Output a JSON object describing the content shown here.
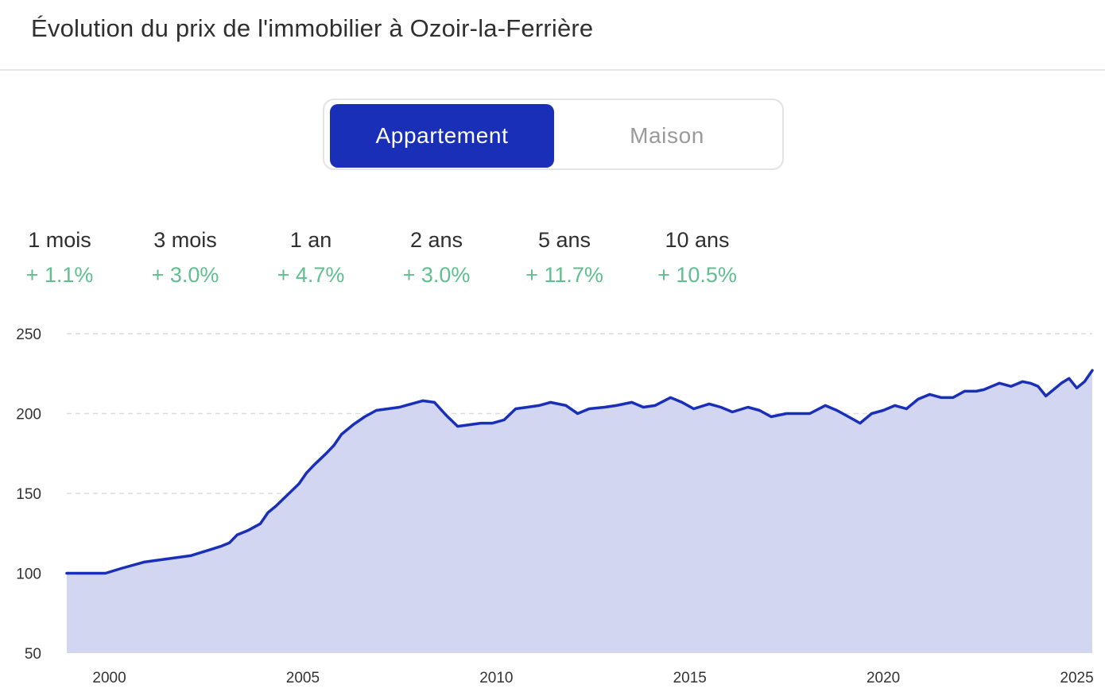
{
  "header": {
    "title": "Évolution du prix de l'immobilier à Ozoir-la-Ferrière"
  },
  "toggle": {
    "options": [
      {
        "label": "Appartement",
        "active": true
      },
      {
        "label": "Maison",
        "active": false
      }
    ]
  },
  "stats": [
    {
      "label": "1 mois",
      "value": "+ 1.1%"
    },
    {
      "label": "3 mois",
      "value": "+ 3.0%"
    },
    {
      "label": "1 an",
      "value": "+ 4.7%"
    },
    {
      "label": "2 ans",
      "value": "+ 3.0%"
    },
    {
      "label": "5 ans",
      "value": "+ 11.7%"
    },
    {
      "label": "10 ans",
      "value": "+ 10.5%"
    }
  ],
  "colors": {
    "line": "#1a2fb8",
    "fill": "#d2d6f0",
    "accent": "#1a2fb8",
    "positive": "#5fbf8f",
    "grid": "#dcdcdc"
  },
  "chart_data": {
    "type": "area",
    "title": "",
    "xlabel": "",
    "ylabel": "",
    "ylim": [
      50,
      250
    ],
    "yticks": [
      250,
      200,
      150,
      100,
      50
    ],
    "xlim": [
      1998.9,
      2025.4
    ],
    "xticks": [
      2000,
      2005,
      2010,
      2015,
      2020,
      2025
    ],
    "grid": true,
    "legend": "none",
    "x": [
      1998.9,
      1999.5,
      1999.9,
      2000.3,
      2000.9,
      2001.5,
      2002.1,
      2002.5,
      2002.9,
      2003.1,
      2003.3,
      2003.6,
      2003.9,
      2004.1,
      2004.3,
      2004.6,
      2004.9,
      2005.1,
      2005.3,
      2005.6,
      2005.8,
      2006.0,
      2006.3,
      2006.6,
      2006.9,
      2007.2,
      2007.5,
      2007.8,
      2008.1,
      2008.4,
      2008.7,
      2009.0,
      2009.3,
      2009.6,
      2009.9,
      2010.2,
      2010.5,
      2010.8,
      2011.1,
      2011.4,
      2011.8,
      2012.1,
      2012.4,
      2012.8,
      2013.1,
      2013.5,
      2013.8,
      2014.1,
      2014.5,
      2014.8,
      2015.1,
      2015.5,
      2015.8,
      2016.1,
      2016.5,
      2016.8,
      2017.1,
      2017.5,
      2017.8,
      2018.1,
      2018.5,
      2018.8,
      2019.1,
      2019.4,
      2019.7,
      2020.0,
      2020.3,
      2020.6,
      2020.9,
      2021.2,
      2021.5,
      2021.8,
      2022.1,
      2022.4,
      2022.6,
      2022.8,
      2023.0,
      2023.3,
      2023.6,
      2023.8,
      2024.0,
      2024.2,
      2024.4,
      2024.6,
      2024.8,
      2025.0,
      2025.2,
      2025.4
    ],
    "series": [
      {
        "values": [
          100,
          100,
          100,
          103,
          107,
          109,
          111,
          114,
          117,
          119,
          124,
          127,
          131,
          138,
          142,
          149,
          156,
          163,
          168,
          175,
          180,
          187,
          193,
          198,
          202,
          203,
          204,
          206,
          208,
          207,
          199,
          192,
          193,
          194,
          194,
          196,
          203,
          204,
          205,
          207,
          205,
          200,
          203,
          204,
          205,
          207,
          204,
          205,
          210,
          207,
          203,
          206,
          204,
          201,
          204,
          202,
          198,
          200,
          200,
          200,
          205,
          202,
          198,
          194,
          200,
          202,
          205,
          203,
          209,
          212,
          210,
          210,
          214,
          214,
          215,
          217,
          219,
          217,
          220,
          219,
          217,
          211,
          215,
          219,
          222,
          216,
          220,
          227
        ]
      }
    ]
  }
}
